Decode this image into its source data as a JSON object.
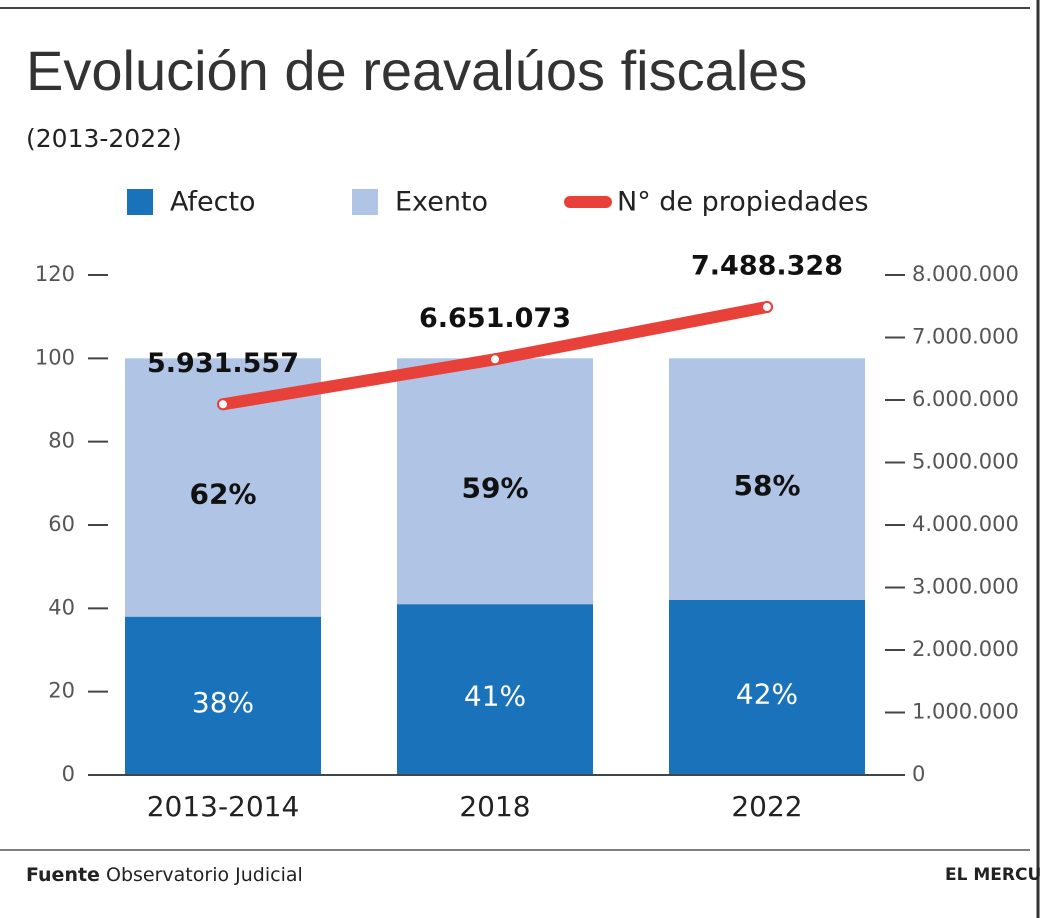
{
  "chart_data": {
    "type": "bar",
    "stacked": true,
    "title": "Evolución de reavalúos fiscales",
    "subtitle": "(2013-2022)",
    "categories": [
      "2013-2014",
      "2018",
      "2022"
    ],
    "series": [
      {
        "name": "Afecto",
        "color": "#1a72bb",
        "values": [
          38,
          41,
          42
        ],
        "value_labels": [
          "38%",
          "41%",
          "42%"
        ]
      },
      {
        "name": "Exento",
        "color": "#b0c4e6",
        "values": [
          62,
          59,
          58
        ],
        "value_labels": [
          "62%",
          "59%",
          "58%"
        ]
      },
      {
        "name": "N° de propiedades",
        "type": "line",
        "axis": "y2",
        "color": "#e8413a",
        "values": [
          5931557,
          6651073,
          7488328
        ],
        "value_labels": [
          "5.931.557",
          "6.651.073",
          "7.488.328"
        ]
      }
    ],
    "ylim": [
      0,
      120
    ],
    "yticks": [
      0,
      20,
      40,
      60,
      80,
      100,
      120
    ],
    "y2lim": [
      0,
      8000000
    ],
    "y2ticks": [
      0,
      {
        "value": 1000000,
        "label": "1.000.000"
      },
      {
        "value": 2000000,
        "label": "2.000.000"
      },
      {
        "value": 3000000,
        "label": "3.000.000"
      },
      {
        "value": 4000000,
        "label": "4.000.000"
      },
      {
        "value": 5000000,
        "label": "5.000.000"
      },
      {
        "value": 6000000,
        "label": "6.000.000"
      },
      {
        "value": 7000000,
        "label": "7.000.000"
      },
      {
        "value": 8000000,
        "label": "8.000.000"
      }
    ],
    "source_label": "Fuente",
    "source": "Observatorio Judicial",
    "credit": "EL MERCURIO"
  }
}
